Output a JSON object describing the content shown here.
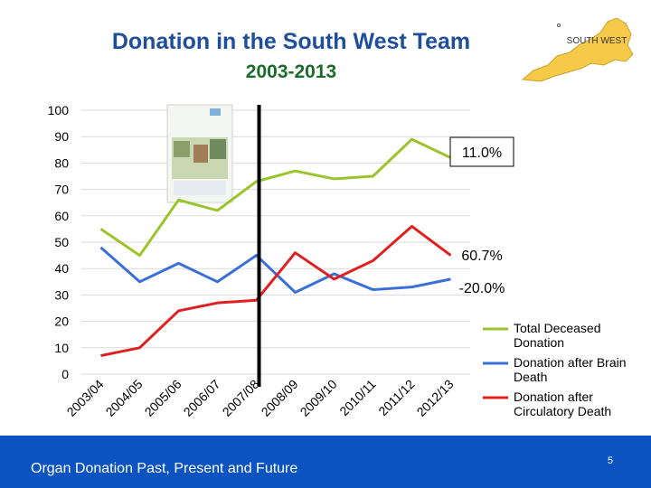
{
  "header": {
    "title": "Donation in the South West Team",
    "subtitle": "2003-2013",
    "map_label": "SOUTH WEST"
  },
  "footer": {
    "text": "Organ Donation Past, Present and Future",
    "page_number": "5"
  },
  "colors": {
    "total": "#9bc32a",
    "brain": "#3a6fd8",
    "circulatory": "#e02020",
    "footer_bg": "#0a53c1",
    "map_fill": "#f7c948"
  },
  "chart_data": {
    "type": "line",
    "title": "",
    "xlabel": "",
    "ylabel": "",
    "ylim": [
      0,
      100
    ],
    "yticks": [
      0,
      10,
      20,
      30,
      40,
      50,
      60,
      70,
      80,
      90,
      100
    ],
    "categories": [
      "2003/04",
      "2004/05",
      "2005/06",
      "2006/07",
      "2007/08",
      "2008/09",
      "2009/10",
      "2010/11",
      "2011/12",
      "2012/13"
    ],
    "series": [
      {
        "name": "Total Deceased Donation",
        "values": [
          55,
          45,
          66,
          62,
          73,
          77,
          74,
          75,
          89,
          82
        ]
      },
      {
        "name": "Donation after Brain Death",
        "values": [
          48,
          35,
          42,
          35,
          45,
          31,
          38,
          32,
          33,
          36
        ]
      },
      {
        "name": "Donation after Circulatory Death",
        "values": [
          7,
          10,
          24,
          27,
          28,
          46,
          36,
          43,
          56,
          45
        ]
      }
    ],
    "legend_position": "bottom-right",
    "annotations": [
      "11.0%",
      "60.7%",
      "-20.0%"
    ],
    "divider_after": "2007/08"
  }
}
